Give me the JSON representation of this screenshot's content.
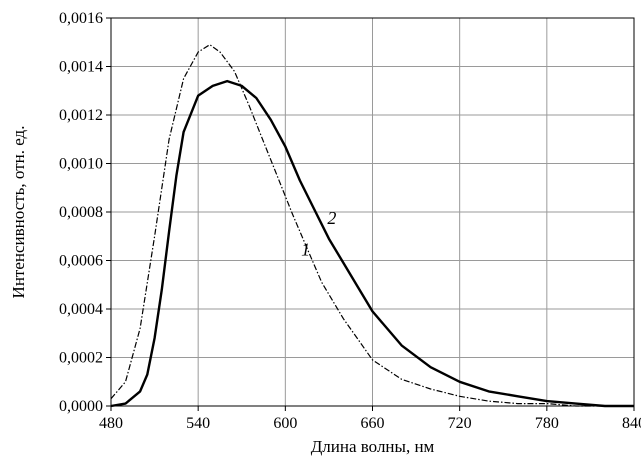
{
  "chart_data": {
    "type": "line",
    "title": "",
    "xlabel": "Длина волны, нм",
    "ylabel": "Интенсивность, отн. ед.",
    "xlim": [
      480,
      840
    ],
    "ylim": [
      0,
      0.0016
    ],
    "x_ticks": [
      480,
      540,
      600,
      660,
      720,
      780,
      840
    ],
    "x_tick_labels": [
      "480",
      "540",
      "600",
      "660",
      "720",
      "780",
      "840"
    ],
    "y_ticks": [
      0,
      0.0002,
      0.0004,
      0.0006,
      0.0008,
      0.001,
      0.0012,
      0.0014,
      0.0016
    ],
    "y_tick_labels": [
      "0,0000",
      "0,0002",
      "0,0004",
      "0,0006",
      "0,0008",
      "0,0010",
      "0,0012",
      "0,0014",
      "0,0016"
    ],
    "grid": true,
    "series": [
      {
        "name": "1",
        "style": "dash-dot",
        "color": "#000000",
        "points": [
          [
            480,
            3e-05
          ],
          [
            490,
            0.0001
          ],
          [
            500,
            0.00032
          ],
          [
            510,
            0.0007
          ],
          [
            520,
            0.0011
          ],
          [
            530,
            0.00135
          ],
          [
            540,
            0.00146
          ],
          [
            548,
            0.00149
          ],
          [
            555,
            0.00146
          ],
          [
            565,
            0.00138
          ],
          [
            575,
            0.00124
          ],
          [
            585,
            0.00109
          ],
          [
            595,
            0.00094
          ],
          [
            605,
            0.00079
          ],
          [
            615,
            0.00065
          ],
          [
            625,
            0.00051
          ],
          [
            640,
            0.00036
          ],
          [
            660,
            0.00019
          ],
          [
            680,
            0.00011
          ],
          [
            700,
            7e-05
          ],
          [
            720,
            4e-05
          ],
          [
            740,
            2e-05
          ],
          [
            760,
            1e-05
          ],
          [
            780,
            1e-05
          ],
          [
            800,
            0.0
          ],
          [
            840,
            0.0
          ]
        ]
      },
      {
        "name": "2",
        "style": "solid",
        "color": "#000000",
        "points": [
          [
            480,
            0.0
          ],
          [
            490,
            1e-05
          ],
          [
            500,
            6e-05
          ],
          [
            505,
            0.00013
          ],
          [
            510,
            0.00028
          ],
          [
            515,
            0.00048
          ],
          [
            520,
            0.00072
          ],
          [
            525,
            0.00095
          ],
          [
            530,
            0.00113
          ],
          [
            540,
            0.00128
          ],
          [
            550,
            0.00132
          ],
          [
            560,
            0.00134
          ],
          [
            570,
            0.00132
          ],
          [
            580,
            0.00127
          ],
          [
            590,
            0.00118
          ],
          [
            600,
            0.00107
          ],
          [
            610,
            0.00093
          ],
          [
            620,
            0.00081
          ],
          [
            630,
            0.00069
          ],
          [
            640,
            0.00059
          ],
          [
            650,
            0.00049
          ],
          [
            660,
            0.00039
          ],
          [
            680,
            0.00025
          ],
          [
            700,
            0.00016
          ],
          [
            720,
            0.0001
          ],
          [
            740,
            6e-05
          ],
          [
            760,
            4e-05
          ],
          [
            780,
            2e-05
          ],
          [
            800,
            1e-05
          ],
          [
            820,
            0.0
          ],
          [
            840,
            0.0
          ]
        ]
      }
    ],
    "annotations": [
      {
        "text": "1",
        "series": "1",
        "x": 614,
        "y": 0.00062
      },
      {
        "text": "2",
        "series": "2",
        "x": 632,
        "y": 0.00075
      }
    ]
  }
}
